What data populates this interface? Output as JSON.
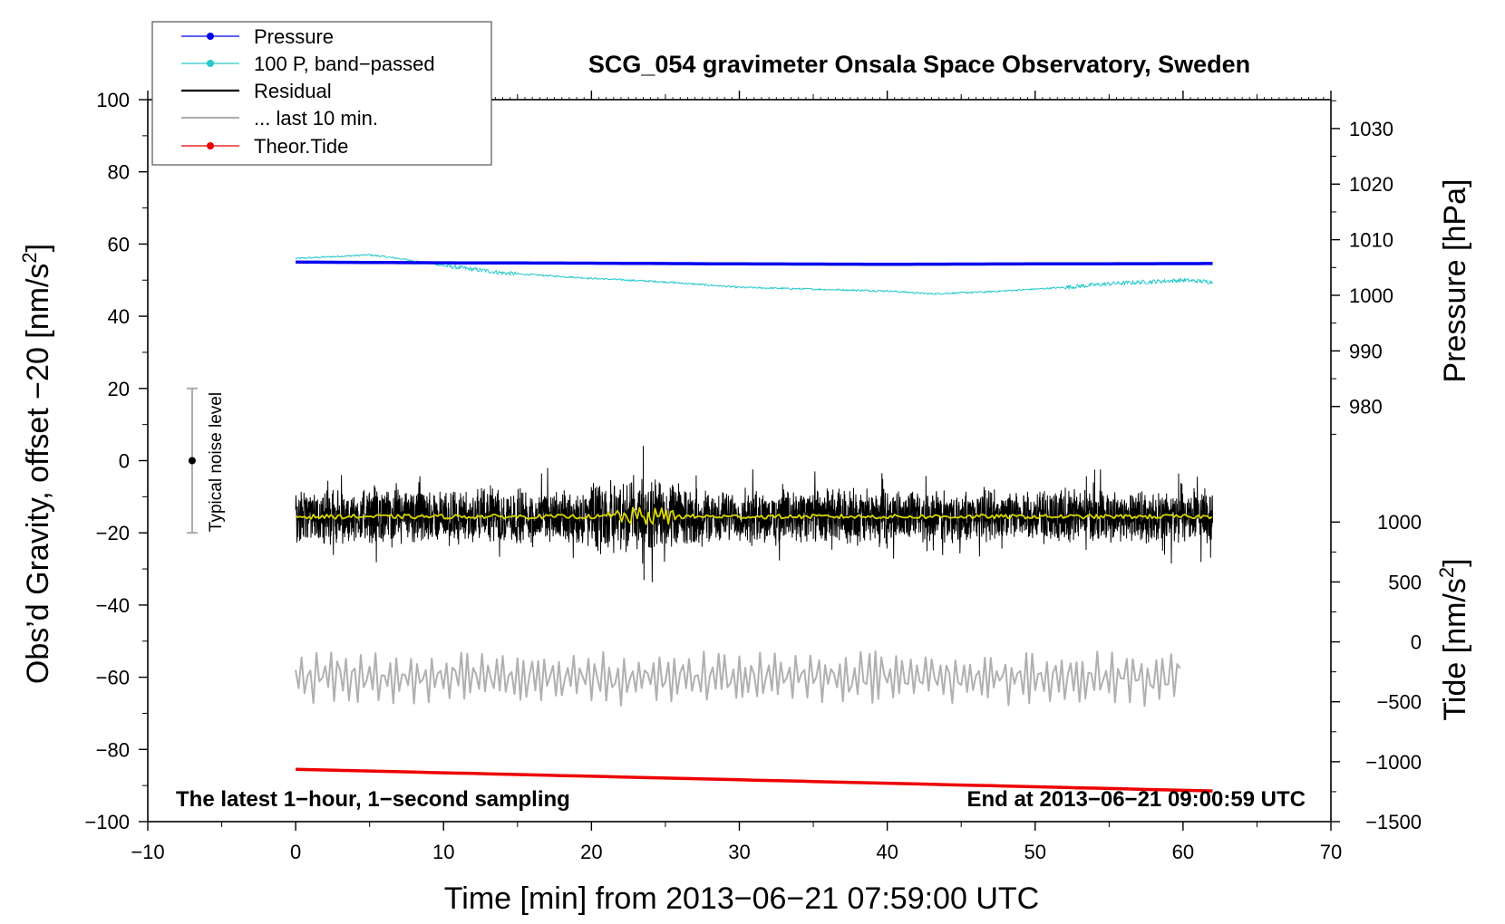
{
  "chart_data": {
    "type": "line",
    "title": "SCG_054 gravimeter Onsala Space Observatory, Sweden",
    "xlabel": "Time [min] from 2013−06−21 07:59:00 UTC",
    "ylabel": "Obs’d Gravity, offset −20 [nm/s",
    "ylabel_sup": "2",
    "ylabel_end": "]",
    "y2_pressure_label": "Pressure [hPa]",
    "y2_tide_label": "Tide [nm/s",
    "y2_tide_sup": "2",
    "y2_tide_end": "]",
    "xlim": [
      -10,
      70
    ],
    "ylim": [
      -100,
      100
    ],
    "x_ticks": [
      -10,
      0,
      10,
      20,
      30,
      40,
      50,
      60,
      70
    ],
    "x_tick_labels": [
      "−10",
      "0",
      "10",
      "20",
      "30",
      "40",
      "50",
      "60",
      "70"
    ],
    "y_ticks": [
      -100,
      -80,
      -60,
      -40,
      -20,
      0,
      20,
      40,
      60,
      80,
      100
    ],
    "y_tick_labels": [
      "−100",
      "−80",
      "−60",
      "−40",
      "−20",
      "0",
      "20",
      "40",
      "60",
      "80",
      "100"
    ],
    "pressure_ticks": [
      980,
      990,
      1000,
      1010,
      1020,
      1030
    ],
    "pressure_tick_labels": [
      "980",
      "990",
      "1000",
      "1010",
      "1020",
      "1030"
    ],
    "tide_ticks": [
      -1500,
      -1000,
      -500,
      0,
      500,
      1000
    ],
    "tide_tick_labels": [
      "−1500",
      "−1000",
      "−500",
      "0",
      "500",
      "1000"
    ],
    "pressure_axis_map": {
      "p1": 980,
      "g1": 15,
      "p2": 1030,
      "g2": 92
    },
    "tide_axis_map": {
      "t1": -1500,
      "g1": -100,
      "t2": 1000,
      "g2": -17
    },
    "annotation_left": "The latest 1−hour, 1−second sampling",
    "annotation_right": "End at 2013−06−21 09:00:59 UTC",
    "noise_label": "Typical noise level",
    "noise_bar": {
      "x": -7,
      "center": 0,
      "low": -20,
      "high": 20
    },
    "legend": [
      {
        "label": "Pressure",
        "color": "#0000ee",
        "style": "line-dot"
      },
      {
        "label": "100 P, band−passed",
        "color": "#27c9cb",
        "style": "line-dot"
      },
      {
        "label": "Residual",
        "color": "#000000",
        "style": "line"
      },
      {
        "label": "... last 10 min.",
        "color": "#b0b0b0",
        "style": "line"
      },
      {
        "label": "Theor.Tide",
        "color": "#ee0000",
        "style": "line-dot"
      }
    ],
    "series": [
      {
        "name": "Pressure",
        "color": "#0000ee",
        "x": [
          0,
          10,
          20,
          30,
          40,
          50,
          62
        ],
        "y": [
          55.0,
          54.8,
          54.7,
          54.5,
          54.4,
          54.5,
          54.6
        ]
      },
      {
        "name": "100 P, band−passed",
        "color": "#27c9cb",
        "x": [
          0,
          5,
          7,
          10,
          14,
          20,
          25,
          30,
          35,
          40,
          43,
          47,
          52,
          55,
          60,
          62
        ],
        "y": [
          56,
          57,
          56,
          54,
          52,
          50.5,
          49.5,
          48,
          47.5,
          47,
          46.2,
          46.8,
          48,
          49,
          50,
          49.5
        ]
      },
      {
        "name": "Residual",
        "color": "#000000",
        "x_start": 0,
        "x_end": 62,
        "mean": -15.5,
        "typical_range": [
          -27,
          -5
        ],
        "max": 4,
        "min": -33,
        "max_at": 23.5
      },
      {
        "name": "Residual smoothed",
        "color": "#d8d800",
        "x_start": 0,
        "x_end": 62,
        "mean": -15.5
      },
      {
        "name": "... last 10 min.",
        "color": "#b0b0b0",
        "x_start": 0,
        "x_end": 60,
        "mean": -60,
        "typical_range": [
          -72,
          -50
        ]
      },
      {
        "name": "Theor.Tide",
        "color": "#ee0000",
        "x": [
          0,
          62
        ],
        "y": [
          -85.5,
          -91.5
        ]
      }
    ]
  }
}
